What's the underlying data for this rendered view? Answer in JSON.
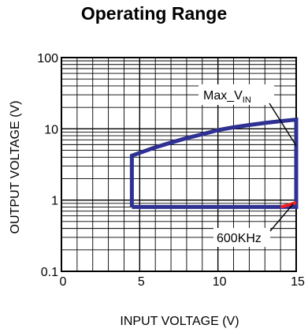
{
  "chart_data": {
    "type": "line",
    "title": "Operating Range",
    "xlabel": "INPUT VOLTAGE (V)",
    "ylabel": "OUTPUT VOLTAGE (V)",
    "xlim": [
      0,
      15
    ],
    "ylim": [
      0.1,
      100
    ],
    "yscale": "log",
    "x_ticks": [
      0,
      5,
      10,
      15
    ],
    "y_ticks": [
      0.1,
      1,
      10,
      100
    ],
    "x_tick_labels": [
      "0",
      "5",
      "10",
      "15"
    ],
    "y_tick_labels": [
      "0.1",
      "1",
      "10",
      "100"
    ],
    "grid": true,
    "series": [
      {
        "color": "#2e3192",
        "points": [
          {
            "x": 4.5,
            "y": 0.8
          },
          {
            "x": 4.5,
            "y": 4.2
          },
          {
            "x": 5.0,
            "y": 4.6
          },
          {
            "x": 6.0,
            "y": 5.5
          },
          {
            "x": 7.0,
            "y": 6.4
          },
          {
            "x": 8.0,
            "y": 7.4
          },
          {
            "x": 9.0,
            "y": 8.4
          },
          {
            "x": 10.0,
            "y": 9.6
          },
          {
            "x": 11.0,
            "y": 10.5
          },
          {
            "x": 12.0,
            "y": 11.3
          },
          {
            "x": 13.0,
            "y": 12.1
          },
          {
            "x": 14.0,
            "y": 12.8
          },
          {
            "x": 15.0,
            "y": 13.5
          },
          {
            "x": 15.0,
            "y": 0.8
          },
          {
            "x": 4.5,
            "y": 0.8
          }
        ]
      },
      {
        "color": "#ee2222",
        "points": [
          {
            "x": 14.0,
            "y": 0.8
          },
          {
            "x": 15.0,
            "y": 0.92
          }
        ]
      }
    ],
    "annotations": [
      {
        "text_main": "Max_V",
        "text_sub": "IN",
        "arrow_to": {
          "x": 15.0,
          "y": 5.8
        }
      },
      {
        "text_main": "600KHz",
        "text_sub": "",
        "arrow_to": {
          "x": 14.8,
          "y": 0.88
        }
      }
    ]
  }
}
